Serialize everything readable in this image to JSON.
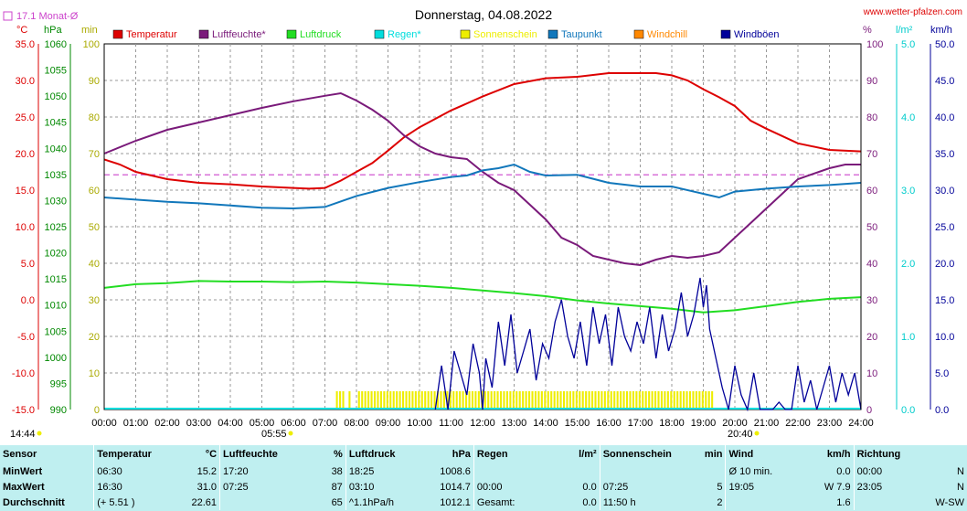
{
  "header": {
    "avg_label": "17.1 Monat-Ø",
    "date": "Donnerstag, 04.08.2022",
    "site": "www.wetter-pfalzen.com",
    "unit_temp": "°C",
    "unit_pressure": "hPa",
    "unit_sun": "min",
    "unit_pct": "%",
    "unit_rain": "l/m²",
    "unit_wind": "km/h",
    "sunrise": "05:55",
    "sunset": "20:40",
    "time_marker": "14:44"
  },
  "colors": {
    "temperature": "#dd0000",
    "humidity": "#7a1a7a",
    "pressure": "#22dd22",
    "rain": "#00dddd",
    "sunshine": "#eeee00",
    "dewpoint": "#1177bb",
    "windchill": "#ff8800",
    "gusts": "#000099",
    "avg_line": "#cc44cc"
  },
  "legend": [
    {
      "label": "Temperatur",
      "color": "#dd0000"
    },
    {
      "label": "Luftfeuchte*",
      "color": "#7a1a7a"
    },
    {
      "label": "Luftdruck",
      "color": "#22dd22"
    },
    {
      "label": "Regen*",
      "color": "#00dddd"
    },
    {
      "label": "Sonnenschein",
      "color": "#eeee00"
    },
    {
      "label": "Taupunkt",
      "color": "#1177bb"
    },
    {
      "label": "Windchill",
      "color": "#ff8800"
    },
    {
      "label": "Windböen",
      "color": "#000099"
    }
  ],
  "chart_data": {
    "type": "line",
    "title": "Donnerstag, 04.08.2022",
    "x_ticks": [
      "00:00",
      "01:00",
      "02:00",
      "03:00",
      "04:00",
      "05:00",
      "06:00",
      "07:00",
      "08:00",
      "09:00",
      "10:00",
      "11:00",
      "12:00",
      "13:00",
      "14:00",
      "15:00",
      "16:00",
      "17:00",
      "18:00",
      "19:00",
      "20:00",
      "21:00",
      "22:00",
      "23:00",
      "24:00"
    ],
    "axes": {
      "temp": {
        "range": [
          -15,
          35
        ],
        "ticks": [
          "35.0",
          "30.0",
          "25.0",
          "20.0",
          "15.0",
          "10.0",
          "5.0",
          "0.0",
          "-5.0",
          "-10.0",
          "-15.0"
        ]
      },
      "pressure": {
        "range": [
          990,
          1060
        ],
        "ticks": [
          "1060",
          "1055",
          "1050",
          "1045",
          "1040",
          "1035",
          "1030",
          "1025",
          "1020",
          "1015",
          "1010",
          "1005",
          "1000",
          "995",
          "990"
        ]
      },
      "sun_min": {
        "range": [
          0,
          100
        ],
        "ticks": [
          "100",
          "90",
          "80",
          "70",
          "60",
          "50",
          "40",
          "30",
          "20",
          "10",
          "0"
        ]
      },
      "humidity_pct": {
        "range": [
          0,
          100
        ],
        "ticks": [
          "100",
          "90",
          "80",
          "70",
          "60",
          "50",
          "40",
          "30",
          "20",
          "10",
          "0"
        ]
      },
      "rain": {
        "range": [
          0,
          5
        ],
        "ticks": [
          "5.0",
          "4.0",
          "3.0",
          "2.0",
          "1.0",
          "0.0"
        ]
      },
      "wind": {
        "range": [
          0,
          50
        ],
        "ticks": [
          "50.0",
          "45.0",
          "40.0",
          "35.0",
          "30.0",
          "25.0",
          "20.0",
          "15.0",
          "10.0",
          "5.0",
          "0.0"
        ]
      }
    },
    "month_avg_temp": 17.1,
    "series": [
      {
        "name": "Temperatur",
        "axis": "temp",
        "x": [
          0,
          0.5,
          1,
          2,
          3,
          4,
          5,
          6,
          6.5,
          7,
          7.5,
          8,
          8.5,
          9,
          9.5,
          10,
          11,
          12,
          13,
          14,
          15,
          16,
          16.5,
          17,
          17.5,
          18,
          18.5,
          19,
          19.5,
          20,
          20.5,
          21,
          22,
          23,
          24
        ],
        "y": [
          19.2,
          18.5,
          17.5,
          16.5,
          16,
          15.8,
          15.5,
          15.3,
          15.2,
          15.3,
          16.3,
          17.5,
          18.7,
          20.4,
          22.2,
          23.6,
          25.9,
          27.8,
          29.5,
          30.3,
          30.5,
          31,
          31,
          31,
          31,
          30.7,
          30,
          28.8,
          27.7,
          26.5,
          24.5,
          23.4,
          21.4,
          20.5,
          20.3
        ]
      },
      {
        "name": "Luftfeuchte*",
        "axis": "humidity_pct",
        "x": [
          0,
          1,
          2,
          3,
          4,
          5,
          6,
          7,
          7.5,
          8,
          8.5,
          9,
          9.5,
          10,
          10.5,
          11,
          11.5,
          12,
          12.5,
          13,
          13.5,
          14,
          14.5,
          15,
          15.5,
          16,
          16.5,
          17,
          17.5,
          18,
          18.5,
          19,
          19.5,
          20,
          20.5,
          21,
          22,
          23,
          23.5,
          24
        ],
        "y": [
          70,
          73.5,
          76.5,
          78.5,
          80.5,
          82.5,
          84.3,
          85.8,
          86.5,
          84.5,
          82,
          79,
          75,
          72,
          70,
          69,
          68.5,
          65,
          62,
          60,
          56,
          52,
          47,
          45,
          42,
          41,
          40,
          39.5,
          41,
          42,
          41.5,
          42,
          43,
          47,
          51,
          55,
          63,
          66,
          67,
          67
        ]
      },
      {
        "name": "Luftdruck",
        "axis": "pressure",
        "x": [
          0,
          1,
          2,
          3,
          4,
          5,
          6,
          7,
          8,
          9,
          10,
          11,
          12,
          13,
          14,
          15,
          16,
          17,
          18,
          19,
          20,
          21,
          22,
          23,
          24
        ],
        "y": [
          1013.3,
          1014,
          1014.2,
          1014.6,
          1014.5,
          1014.5,
          1014.4,
          1014.5,
          1014.3,
          1014,
          1013.7,
          1013.3,
          1012.8,
          1012.3,
          1011.7,
          1010.9,
          1010.3,
          1009.8,
          1009.3,
          1008.6,
          1009,
          1009.8,
          1010.6,
          1011.2,
          1011.5
        ]
      },
      {
        "name": "Taupunkt",
        "axis": "temp",
        "x": [
          0,
          1,
          2,
          3,
          4,
          5,
          6,
          7,
          8,
          9,
          10,
          11,
          11.5,
          12,
          12.5,
          13,
          13.5,
          14,
          15,
          16,
          17,
          18,
          19,
          19.5,
          20,
          21,
          22,
          23,
          24
        ],
        "y": [
          14,
          13.7,
          13.4,
          13.2,
          12.9,
          12.6,
          12.5,
          12.7,
          14.2,
          15.3,
          16.1,
          16.8,
          17,
          17.7,
          18,
          18.5,
          17.5,
          17,
          17.1,
          16,
          15.5,
          15.5,
          14.5,
          14,
          14.8,
          15.2,
          15.5,
          15.7,
          16
        ]
      },
      {
        "name": "Windböen",
        "axis": "wind",
        "x": [
          10.5,
          10.6,
          10.7,
          10.9,
          11.1,
          11.3,
          11.5,
          11.7,
          11.9,
          12,
          12.1,
          12.3,
          12.5,
          12.7,
          12.9,
          13.1,
          13.3,
          13.5,
          13.7,
          13.9,
          14.1,
          14.3,
          14.5,
          14.7,
          14.9,
          15.1,
          15.3,
          15.5,
          15.7,
          15.9,
          16.1,
          16.3,
          16.5,
          16.7,
          16.9,
          17.1,
          17.3,
          17.5,
          17.7,
          17.9,
          18.1,
          18.3,
          18.5,
          18.7,
          18.9,
          19,
          19.1,
          19.2,
          19.4,
          19.6,
          19.8,
          20,
          20.2,
          20.4,
          20.6,
          20.8,
          21,
          21.2,
          21.4,
          21.6,
          21.8,
          22,
          22.2,
          22.4,
          22.6,
          22.8,
          23,
          23.2,
          23.4,
          23.6,
          23.8,
          24
        ],
        "y": [
          0,
          3,
          6,
          0,
          8,
          5,
          2,
          9,
          5,
          0,
          7,
          3,
          12,
          6,
          13,
          5,
          8,
          11,
          4,
          9,
          7,
          12,
          15,
          10,
          7,
          12,
          6,
          14,
          9,
          13,
          6,
          14,
          10,
          8,
          12,
          9,
          14,
          7,
          13,
          8,
          11,
          16,
          10,
          13,
          18,
          14,
          17,
          11,
          7,
          3,
          0,
          6,
          2,
          0,
          5,
          0,
          0,
          0,
          1,
          0,
          0,
          6,
          1,
          4,
          0,
          3,
          6,
          1,
          5,
          2,
          5,
          0
        ]
      }
    ],
    "sunshine_spans": [
      [
        7.35,
        7.6
      ],
      [
        7.75,
        7.85
      ],
      [
        8.05,
        19.35
      ]
    ]
  },
  "stats": {
    "headers": [
      "Sensor",
      "Temperatur",
      "°C",
      "Luftfeuchte",
      "%",
      "Luftdruck",
      "hPa",
      "Regen",
      "l/m²",
      "Sonnenschein",
      "min",
      "Wind",
      "km/h",
      "Richtung",
      ""
    ],
    "rows": [
      [
        "MinWert",
        "06:30",
        "15.2",
        "17:20",
        "38",
        "18:25",
        "1008.6",
        "",
        "",
        "",
        "",
        "Ø 10 min.",
        "0.0",
        "00:00",
        "N"
      ],
      [
        "MaxWert",
        "16:30",
        "31.0",
        "07:25",
        "87",
        "03:10",
        "1014.7",
        "00:00",
        "0.0",
        "07:25",
        "5",
        "19:05",
        "W 7.9",
        "23:05",
        "N"
      ],
      [
        "Durchschnitt",
        "(+ 5.51 )",
        "22.61",
        "",
        "65",
        "^1.1hPa/h",
        "1012.1",
        "Gesamt:",
        "0.0",
        "11:50 h",
        "2",
        "",
        "1.6",
        "",
        "W-SW"
      ]
    ]
  }
}
